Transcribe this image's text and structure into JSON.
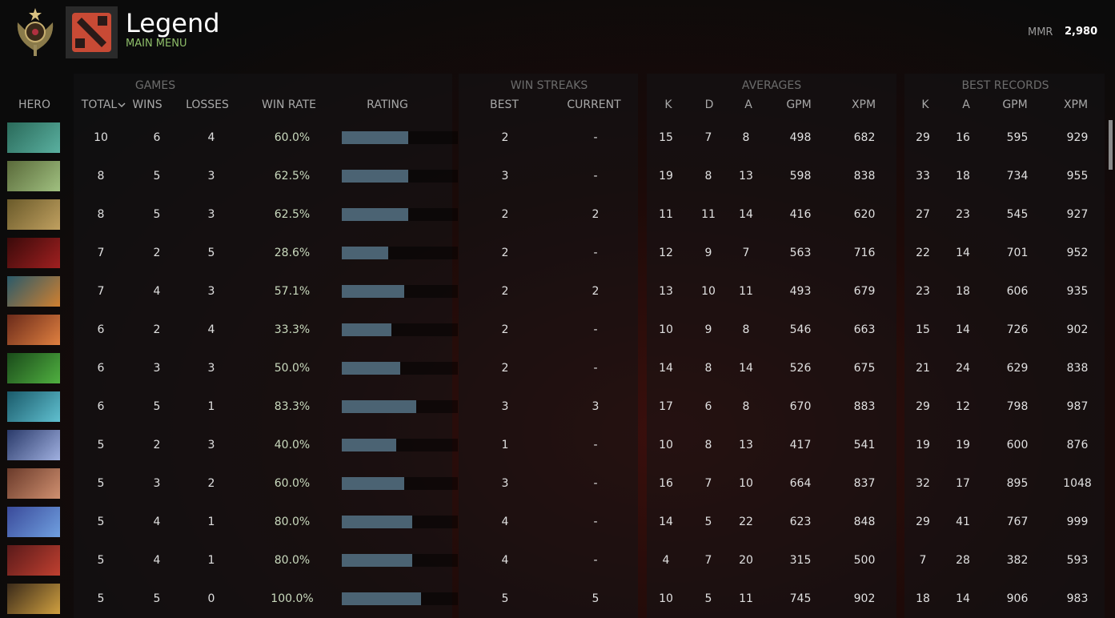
{
  "header": {
    "title": "Legend",
    "subtitle": "MAIN MENU",
    "mmr_label": "MMR",
    "mmr": "2,980"
  },
  "table": {
    "groups": [
      "GAMES",
      "WIN STREAKS",
      "AVERAGES",
      "BEST RECORDS"
    ],
    "columns": [
      "HERO",
      "TOTAL",
      "WINS",
      "LOSSES",
      "WIN RATE",
      "RATING",
      "BEST",
      "CURRENT",
      "K",
      "D",
      "A",
      "GPM",
      "XPM",
      "K",
      "A",
      "GPM",
      "XPM"
    ],
    "rows": [
      {
        "cells": [
          10,
          6,
          4,
          "60.0%",
          2,
          "-",
          15,
          7,
          8,
          498,
          682,
          29,
          16,
          595,
          929
        ],
        "rating": 0.57
      },
      {
        "cells": [
          8,
          5,
          3,
          "62.5%",
          3,
          "-",
          19,
          8,
          13,
          598,
          838,
          33,
          18,
          734,
          955
        ],
        "rating": 0.57
      },
      {
        "cells": [
          8,
          5,
          3,
          "62.5%",
          2,
          2,
          11,
          11,
          14,
          416,
          620,
          27,
          23,
          545,
          927
        ],
        "rating": 0.57
      },
      {
        "cells": [
          7,
          2,
          5,
          "28.6%",
          2,
          "-",
          12,
          9,
          7,
          563,
          716,
          22,
          14,
          701,
          952
        ],
        "rating": 0.4
      },
      {
        "cells": [
          7,
          4,
          3,
          "57.1%",
          2,
          2,
          13,
          10,
          11,
          493,
          679,
          23,
          18,
          606,
          935
        ],
        "rating": 0.54
      },
      {
        "cells": [
          6,
          2,
          4,
          "33.3%",
          2,
          "-",
          10,
          9,
          8,
          546,
          663,
          15,
          14,
          726,
          902
        ],
        "rating": 0.43
      },
      {
        "cells": [
          6,
          3,
          3,
          "50.0%",
          2,
          "-",
          14,
          8,
          14,
          526,
          675,
          21,
          24,
          629,
          838
        ],
        "rating": 0.5
      },
      {
        "cells": [
          6,
          5,
          1,
          "83.3%",
          3,
          3,
          17,
          6,
          8,
          670,
          883,
          29,
          12,
          798,
          987
        ],
        "rating": 0.64
      },
      {
        "cells": [
          5,
          2,
          3,
          "40.0%",
          1,
          "-",
          10,
          8,
          13,
          417,
          541,
          19,
          19,
          600,
          876
        ],
        "rating": 0.47
      },
      {
        "cells": [
          5,
          3,
          2,
          "60.0%",
          3,
          "-",
          16,
          7,
          10,
          664,
          837,
          32,
          17,
          895,
          1048
        ],
        "rating": 0.54
      },
      {
        "cells": [
          5,
          4,
          1,
          "80.0%",
          4,
          "-",
          14,
          5,
          22,
          623,
          848,
          29,
          41,
          767,
          999
        ],
        "rating": 0.61
      },
      {
        "cells": [
          5,
          4,
          1,
          "80.0%",
          4,
          "-",
          4,
          7,
          20,
          315,
          500,
          7,
          28,
          382,
          593
        ],
        "rating": 0.61
      },
      {
        "cells": [
          5,
          5,
          0,
          "100.0%",
          5,
          5,
          10,
          5,
          11,
          745,
          902,
          18,
          14,
          906,
          983
        ],
        "rating": 0.68
      }
    ]
  }
}
